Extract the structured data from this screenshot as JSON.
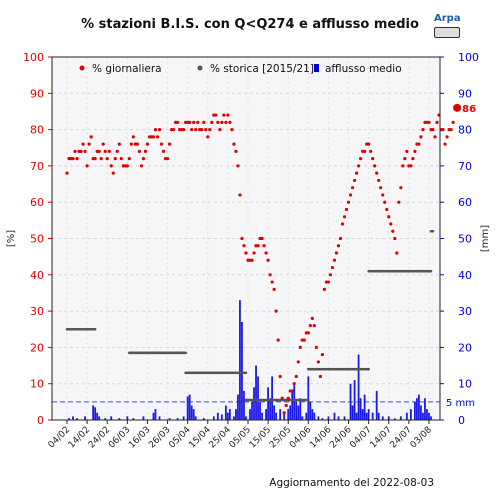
{
  "chart_data": {
    "type": "scatter+bar",
    "title": "% stazioni B.I.S. con Q<Q274 e afflusso medio",
    "ylabel_left": "[%]",
    "ylabel_right": "[mm]",
    "ylim_left": [
      0,
      100
    ],
    "ylim_right": [
      0,
      100
    ],
    "yticks": [
      0,
      10,
      20,
      30,
      40,
      50,
      60,
      70,
      80,
      90,
      100
    ],
    "x_tick_labels": [
      "04/02",
      "14/02",
      "24/02",
      "06/03",
      "16/03",
      "26/03",
      "05/04",
      "15/04",
      "25/04",
      "05/05",
      "15/05",
      "25/05",
      "04/06",
      "14/06",
      "24/06",
      "04/07",
      "14/07",
      "24/07",
      "03/08"
    ],
    "x_tick_days": [
      0,
      10,
      20,
      30,
      40,
      50,
      60,
      70,
      80,
      90,
      100,
      110,
      120,
      130,
      140,
      150,
      160,
      170,
      180
    ],
    "x_start_date": "2022-02-04",
    "grid": true,
    "legend": [
      "% giornaliera",
      "% storica [2015/21]",
      "afflusso medio"
    ],
    "legend_colors": [
      "#e00000",
      "#555555",
      "#0000e0"
    ],
    "last_value_label": "86",
    "threshold_label": "5 mm",
    "threshold_mm": 5,
    "footer": "Aggiornamento del 2022-08-03",
    "series_daily": [
      68,
      72,
      72,
      72,
      74,
      72,
      74,
      74,
      76,
      74,
      70,
      76,
      78,
      72,
      72,
      74,
      74,
      72,
      76,
      74,
      72,
      74,
      70,
      68,
      72,
      74,
      76,
      72,
      70,
      70,
      70,
      72,
      76,
      78,
      76,
      76,
      74,
      70,
      72,
      74,
      76,
      78,
      78,
      78,
      80,
      78,
      80,
      76,
      74,
      72,
      72,
      76,
      80,
      80,
      82,
      82,
      80,
      80,
      80,
      82,
      82,
      82,
      80,
      82,
      80,
      82,
      80,
      80,
      82,
      80,
      78,
      80,
      82,
      84,
      84,
      82,
      80,
      82,
      84,
      82,
      84,
      82,
      80,
      76,
      74,
      70,
      62,
      50,
      48,
      46,
      44,
      44,
      44,
      46,
      48,
      48,
      50,
      50,
      48,
      46,
      44,
      40,
      38,
      36,
      30,
      22,
      12,
      6,
      2,
      4,
      6,
      8,
      8,
      10,
      12,
      16,
      20,
      22,
      22,
      24,
      24,
      26,
      28,
      26,
      20,
      16,
      12,
      18,
      36,
      38,
      38,
      40,
      42,
      44,
      46,
      48,
      50,
      54,
      56,
      58,
      60,
      62,
      64,
      66,
      68,
      70,
      72,
      74,
      74,
      76,
      76,
      74,
      72,
      70,
      68,
      66,
      64,
      62,
      60,
      58,
      56,
      54,
      52,
      50,
      46,
      60,
      64,
      70,
      72,
      74,
      70,
      70,
      72,
      74,
      76,
      76,
      78,
      80,
      82,
      82,
      82,
      80,
      80,
      78,
      82,
      84,
      80,
      80,
      76,
      78,
      80,
      80,
      82,
      86,
      86
    ],
    "series_historical": [
      {
        "from_day": 0,
        "to_day": 14,
        "value": 25
      },
      {
        "from_day": 31,
        "to_day": 59,
        "value": 18.5
      },
      {
        "from_day": 59,
        "to_day": 89,
        "value": 13
      },
      {
        "from_day": 89,
        "to_day": 120,
        "value": 5.5
      },
      {
        "from_day": 120,
        "to_day": 150,
        "value": 14
      },
      {
        "from_day": 150,
        "to_day": 181,
        "value": 41
      },
      {
        "from_day": 181,
        "to_day": 182,
        "value": 52
      }
    ],
    "series_rain_mm": [
      {
        "day": 1,
        "value": 0.5
      },
      {
        "day": 3,
        "value": 1
      },
      {
        "day": 5,
        "value": 0.5
      },
      {
        "day": 9,
        "value": 1
      },
      {
        "day": 13,
        "value": 4
      },
      {
        "day": 14,
        "value": 3.5
      },
      {
        "day": 15,
        "value": 2
      },
      {
        "day": 16,
        "value": 1
      },
      {
        "day": 19,
        "value": 0.5
      },
      {
        "day": 22,
        "value": 1
      },
      {
        "day": 26,
        "value": 0.5
      },
      {
        "day": 30,
        "value": 1
      },
      {
        "day": 33,
        "value": 0.5
      },
      {
        "day": 38,
        "value": 1
      },
      {
        "day": 43,
        "value": 2
      },
      {
        "day": 44,
        "value": 3
      },
      {
        "day": 46,
        "value": 1
      },
      {
        "day": 51,
        "value": 0.5
      },
      {
        "day": 55,
        "value": 0.5
      },
      {
        "day": 58,
        "value": 1
      },
      {
        "day": 60,
        "value": 6.5
      },
      {
        "day": 61,
        "value": 7
      },
      {
        "day": 62,
        "value": 4
      },
      {
        "day": 63,
        "value": 3
      },
      {
        "day": 64,
        "value": 1
      },
      {
        "day": 68,
        "value": 0.5
      },
      {
        "day": 73,
        "value": 1
      },
      {
        "day": 75,
        "value": 2
      },
      {
        "day": 77,
        "value": 1.5
      },
      {
        "day": 79,
        "value": 4
      },
      {
        "day": 80,
        "value": 2
      },
      {
        "day": 81,
        "value": 3
      },
      {
        "day": 83,
        "value": 1
      },
      {
        "day": 84,
        "value": 3
      },
      {
        "day": 85,
        "value": 7
      },
      {
        "day": 86,
        "value": 33
      },
      {
        "day": 87,
        "value": 27
      },
      {
        "day": 88,
        "value": 8
      },
      {
        "day": 89,
        "value": 1
      },
      {
        "day": 91,
        "value": 3
      },
      {
        "day": 92,
        "value": 5
      },
      {
        "day": 93,
        "value": 9
      },
      {
        "day": 94,
        "value": 15
      },
      {
        "day": 95,
        "value": 12
      },
      {
        "day": 96,
        "value": 5
      },
      {
        "day": 97,
        "value": 2
      },
      {
        "day": 99,
        "value": 3
      },
      {
        "day": 100,
        "value": 9
      },
      {
        "day": 101,
        "value": 6
      },
      {
        "day": 102,
        "value": 12
      },
      {
        "day": 103,
        "value": 4
      },
      {
        "day": 104,
        "value": 2
      },
      {
        "day": 106,
        "value": 3
      },
      {
        "day": 108,
        "value": 2
      },
      {
        "day": 110,
        "value": 3
      },
      {
        "day": 111,
        "value": 4
      },
      {
        "day": 112,
        "value": 8
      },
      {
        "day": 113,
        "value": 10
      },
      {
        "day": 114,
        "value": 5
      },
      {
        "day": 115,
        "value": 4
      },
      {
        "day": 116,
        "value": 6
      },
      {
        "day": 117,
        "value": 1
      },
      {
        "day": 119,
        "value": 2
      },
      {
        "day": 120,
        "value": 12
      },
      {
        "day": 121,
        "value": 5
      },
      {
        "day": 122,
        "value": 3
      },
      {
        "day": 123,
        "value": 2
      },
      {
        "day": 125,
        "value": 1
      },
      {
        "day": 127,
        "value": 0.5
      },
      {
        "day": 130,
        "value": 1
      },
      {
        "day": 133,
        "value": 2
      },
      {
        "day": 135,
        "value": 1
      },
      {
        "day": 138,
        "value": 1
      },
      {
        "day": 141,
        "value": 10
      },
      {
        "day": 142,
        "value": 4
      },
      {
        "day": 143,
        "value": 11
      },
      {
        "day": 144,
        "value": 2
      },
      {
        "day": 145,
        "value": 18
      },
      {
        "day": 146,
        "value": 6
      },
      {
        "day": 147,
        "value": 3
      },
      {
        "day": 148,
        "value": 7
      },
      {
        "day": 149,
        "value": 2
      },
      {
        "day": 150,
        "value": 3
      },
      {
        "day": 152,
        "value": 2
      },
      {
        "day": 154,
        "value": 8
      },
      {
        "day": 155,
        "value": 2
      },
      {
        "day": 157,
        "value": 1
      },
      {
        "day": 160,
        "value": 1
      },
      {
        "day": 163,
        "value": 0.5
      },
      {
        "day": 166,
        "value": 1
      },
      {
        "day": 169,
        "value": 2
      },
      {
        "day": 171,
        "value": 3
      },
      {
        "day": 173,
        "value": 5
      },
      {
        "day": 174,
        "value": 6
      },
      {
        "day": 175,
        "value": 7
      },
      {
        "day": 176,
        "value": 4
      },
      {
        "day": 177,
        "value": 2
      },
      {
        "day": 178,
        "value": 6
      },
      {
        "day": 179,
        "value": 3
      },
      {
        "day": 180,
        "value": 2
      },
      {
        "day": 181,
        "value": 1
      }
    ]
  },
  "logo": {
    "text": "Arpa",
    "license": "cc by-nc-sa"
  }
}
